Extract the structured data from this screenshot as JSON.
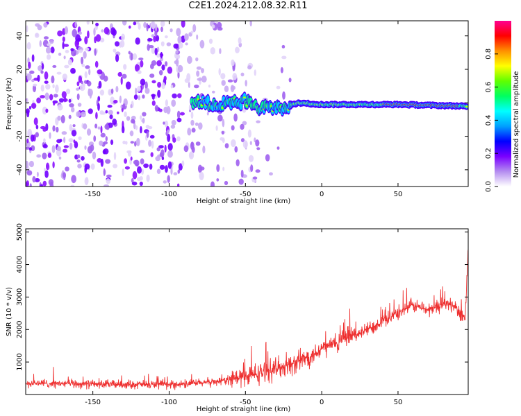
{
  "title": "C2E1.2024.212.08.32.R11",
  "chart_data": [
    {
      "type": "heatmap",
      "xlabel": "Height of straight line (km)",
      "ylabel": "Frequency (Hz)",
      "xlim": [
        -194,
        96
      ],
      "ylim": [
        -50,
        49
      ],
      "xticks": [
        -150,
        -100,
        -50,
        0,
        50
      ],
      "yticks": [
        -40,
        -20,
        0,
        20,
        40
      ],
      "colorbar": {
        "label": "Normalized spectral amplitude",
        "ticks": [
          0.0,
          0.2,
          0.4,
          0.6,
          0.8
        ],
        "range": [
          0,
          1
        ],
        "colormap": [
          "#ffffff",
          "#b48cf0",
          "#7a00ff",
          "#0000ff",
          "#00a0ff",
          "#00ffff",
          "#00ff60",
          "#60ff00",
          "#ffff00",
          "#ff9000",
          "#ff0000",
          "#ff0090"
        ]
      },
      "ridge": {
        "description_points_km_hz": [
          {
            "x": -85,
            "y": 0
          },
          {
            "x": -70,
            "y": -1
          },
          {
            "x": -50,
            "y": 1
          },
          {
            "x": -40,
            "y": -3
          },
          {
            "x": -25,
            "y": -3
          },
          {
            "x": -15,
            "y": 0
          },
          {
            "x": 0,
            "y": -1
          },
          {
            "x": 50,
            "y": -1
          },
          {
            "x": 95,
            "y": -2
          }
        ]
      }
    },
    {
      "type": "line",
      "xlabel": "Height of straight line (km)",
      "ylabel": "SNR (10 * v/v)",
      "xlim": [
        -194,
        96
      ],
      "ylim": [
        0,
        5100
      ],
      "xticks": [
        -150,
        -100,
        -50,
        0,
        50
      ],
      "yticks": [
        1000,
        2000,
        3000,
        4000,
        5000
      ],
      "color": "#ee3030",
      "trend": [
        {
          "x": -194,
          "y": 350
        },
        {
          "x": -150,
          "y": 320
        },
        {
          "x": -100,
          "y": 300
        },
        {
          "x": -80,
          "y": 350
        },
        {
          "x": -60,
          "y": 450
        },
        {
          "x": -45,
          "y": 600
        },
        {
          "x": -30,
          "y": 800
        },
        {
          "x": -15,
          "y": 1000
        },
        {
          "x": 0,
          "y": 1400
        },
        {
          "x": 15,
          "y": 1700
        },
        {
          "x": 30,
          "y": 2000
        },
        {
          "x": 45,
          "y": 2400
        },
        {
          "x": 60,
          "y": 2750
        },
        {
          "x": 70,
          "y": 2600
        },
        {
          "x": 80,
          "y": 2800
        },
        {
          "x": 88,
          "y": 2700
        },
        {
          "x": 94,
          "y": 2300
        },
        {
          "x": 96,
          "y": 4500
        }
      ]
    }
  ]
}
